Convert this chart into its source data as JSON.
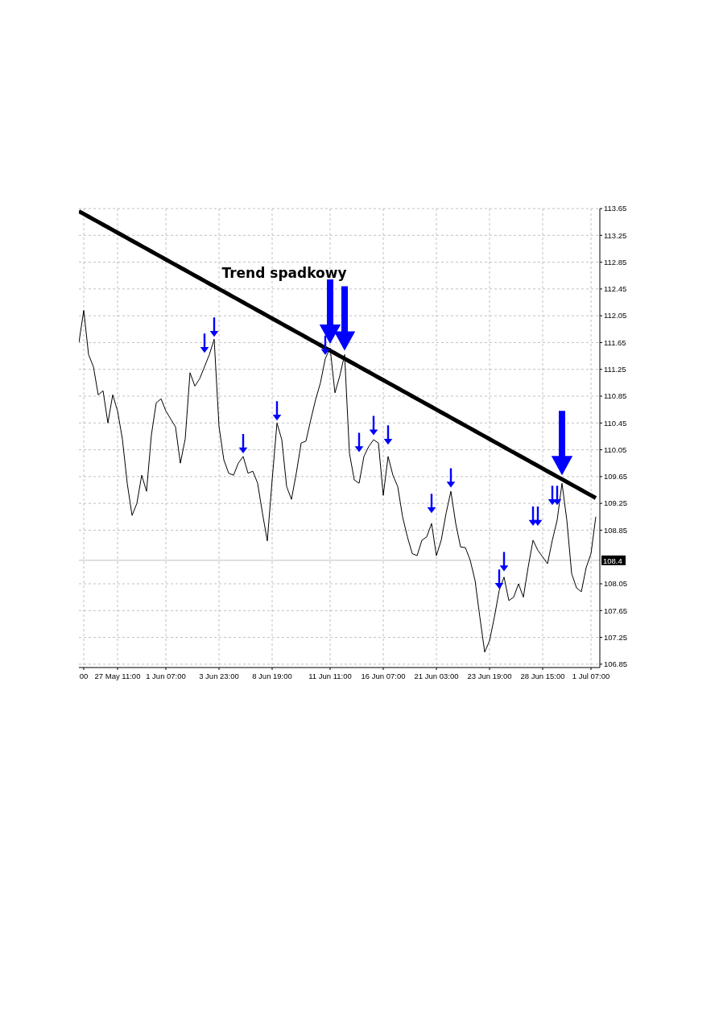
{
  "chart_data": {
    "type": "line",
    "annotations": [
      "Trend spadkowy"
    ],
    "categories": [
      null,
      "00",
      null,
      null,
      null,
      null,
      null,
      null,
      "27 May 11:00",
      null,
      null,
      null,
      null,
      null,
      null,
      null,
      null,
      null,
      "1 Jun 07:00",
      null,
      null,
      null,
      null,
      null,
      null,
      null,
      null,
      null,
      null,
      "3 Jun 23:00",
      null,
      null,
      null,
      null,
      null,
      null,
      null,
      null,
      null,
      null,
      "8 Jun 19:00",
      null,
      null,
      null,
      null,
      null,
      null,
      null,
      null,
      null,
      null,
      null,
      "11 Jun 11:00",
      null,
      null,
      null,
      null,
      null,
      null,
      null,
      null,
      null,
      null,
      "16 Jun 07:00",
      null,
      null,
      null,
      null,
      null,
      null,
      null,
      null,
      null,
      null,
      "21 Jun 03:00",
      null,
      null,
      null,
      null,
      null,
      null,
      null,
      null,
      null,
      null,
      "23 Jun 19:00",
      null,
      null,
      null,
      null,
      null,
      null,
      null,
      null,
      null,
      null,
      "28 Jun 15:00",
      null,
      null,
      null,
      null,
      null,
      null,
      null,
      null,
      null,
      "1 Jul 07:00",
      null
    ],
    "ylim": [
      106.8,
      113.65
    ],
    "yticks": [
      106.85,
      107.25,
      107.65,
      108.05,
      108.85,
      109.25,
      109.65,
      110.05,
      110.45,
      110.85,
      111.25,
      111.65,
      112.05,
      112.45,
      112.85,
      113.25,
      113.65
    ],
    "grid": true,
    "ref_lines": [
      {
        "axis": "y",
        "value": 108.4,
        "label": "108.4",
        "color": "#c0c0c0"
      }
    ],
    "series": [
      {
        "color": "#000000",
        "values": [
          111.65,
          112.13,
          111.47,
          111.29,
          110.87,
          110.93,
          110.45,
          110.87,
          110.63,
          110.21,
          109.55,
          109.07,
          109.25,
          109.67,
          109.43,
          110.27,
          110.75,
          110.81,
          110.63,
          110.51,
          110.39,
          109.85,
          110.21,
          111.2,
          111.0,
          111.11,
          111.29,
          111.47,
          111.7,
          110.4,
          109.9,
          109.7,
          109.67,
          109.85,
          109.95,
          109.7,
          109.73,
          109.55,
          109.1,
          108.69,
          109.6,
          110.45,
          110.2,
          109.5,
          109.31,
          109.7,
          110.15,
          110.18,
          110.5,
          110.8,
          111.05,
          111.41,
          111.57,
          110.9,
          111.15,
          111.47,
          110.0,
          109.6,
          109.55,
          109.95,
          110.1,
          110.2,
          110.15,
          109.37,
          109.95,
          109.67,
          109.5,
          109.05,
          108.75,
          108.5,
          108.47,
          108.7,
          108.75,
          108.95,
          108.47,
          108.7,
          109.1,
          109.43,
          108.95,
          108.6,
          108.59,
          108.4,
          108.1,
          107.55,
          107.03,
          107.2,
          107.55,
          107.95,
          108.15,
          107.8,
          107.85,
          108.05,
          107.85,
          108.3,
          108.7,
          108.55,
          108.45,
          108.35,
          108.7,
          109.0,
          109.55,
          109.0,
          108.2,
          107.99,
          107.93,
          108.29,
          108.5,
          109.05
        ]
      },
      {
        "type": "line",
        "color": "#000000",
        "values": [
          113.61,
          113.57,
          113.53,
          113.49,
          113.45,
          113.41,
          113.37,
          113.33,
          113.29,
          113.25,
          113.21,
          113.17,
          113.13,
          113.09,
          113.05,
          113.01,
          112.97,
          112.93,
          112.89,
          112.85,
          112.81,
          112.77,
          112.73,
          112.69,
          112.65,
          112.61,
          112.57,
          112.53,
          112.49,
          112.45,
          112.41,
          112.37,
          112.33,
          112.29,
          112.25,
          112.21,
          112.17,
          112.13,
          112.09,
          112.05,
          112.01,
          111.97,
          111.93,
          111.89,
          111.85,
          111.81,
          111.77,
          111.73,
          111.69,
          111.65,
          111.61,
          111.57,
          111.53,
          111.49,
          111.45,
          111.41,
          111.37,
          111.33,
          111.29,
          111.25,
          111.21,
          111.17,
          111.13,
          111.09,
          111.05,
          111.01,
          110.97,
          110.93,
          110.89,
          110.85,
          110.81,
          110.77,
          110.73,
          110.69,
          110.65,
          110.61,
          110.57,
          110.53,
          110.49,
          110.45,
          110.41,
          110.37,
          110.33,
          110.29,
          110.25,
          110.21,
          110.17,
          110.13,
          110.09,
          110.05,
          110.01,
          109.97,
          109.93,
          109.89,
          109.85,
          109.81,
          109.77,
          109.73,
          109.69,
          109.65,
          109.61,
          109.57,
          109.53,
          109.49,
          109.45,
          109.41,
          109.37,
          109.33
        ]
      },
      {
        "type": "scatter",
        "color": "#0000ff",
        "values": [
          null,
          null,
          null,
          null,
          null,
          null,
          null,
          null,
          null,
          null,
          null,
          null,
          null,
          null,
          null,
          null,
          null,
          null,
          null,
          null,
          null,
          null,
          null,
          null,
          null,
          null,
          111.64,
          null,
          111.88,
          null,
          null,
          null,
          null,
          null,
          110.14,
          null,
          null,
          null,
          null,
          null,
          null,
          110.63,
          null,
          null,
          null,
          null,
          null,
          null,
          null,
          null,
          null,
          111.61,
          null,
          null,
          null,
          null,
          null,
          null,
          110.16,
          null,
          null,
          110.41,
          null,
          null,
          110.27,
          null,
          null,
          null,
          null,
          null,
          null,
          null,
          null,
          109.25,
          null,
          null,
          null,
          109.63,
          null,
          null,
          null,
          null,
          null,
          null,
          null,
          null,
          null,
          108.12,
          108.38,
          null,
          null,
          null,
          null,
          null,
          109.06,
          109.06,
          null,
          null,
          109.37,
          109.37,
          null,
          null,
          null,
          null,
          null,
          null,
          null,
          null
        ]
      }
    ]
  }
}
